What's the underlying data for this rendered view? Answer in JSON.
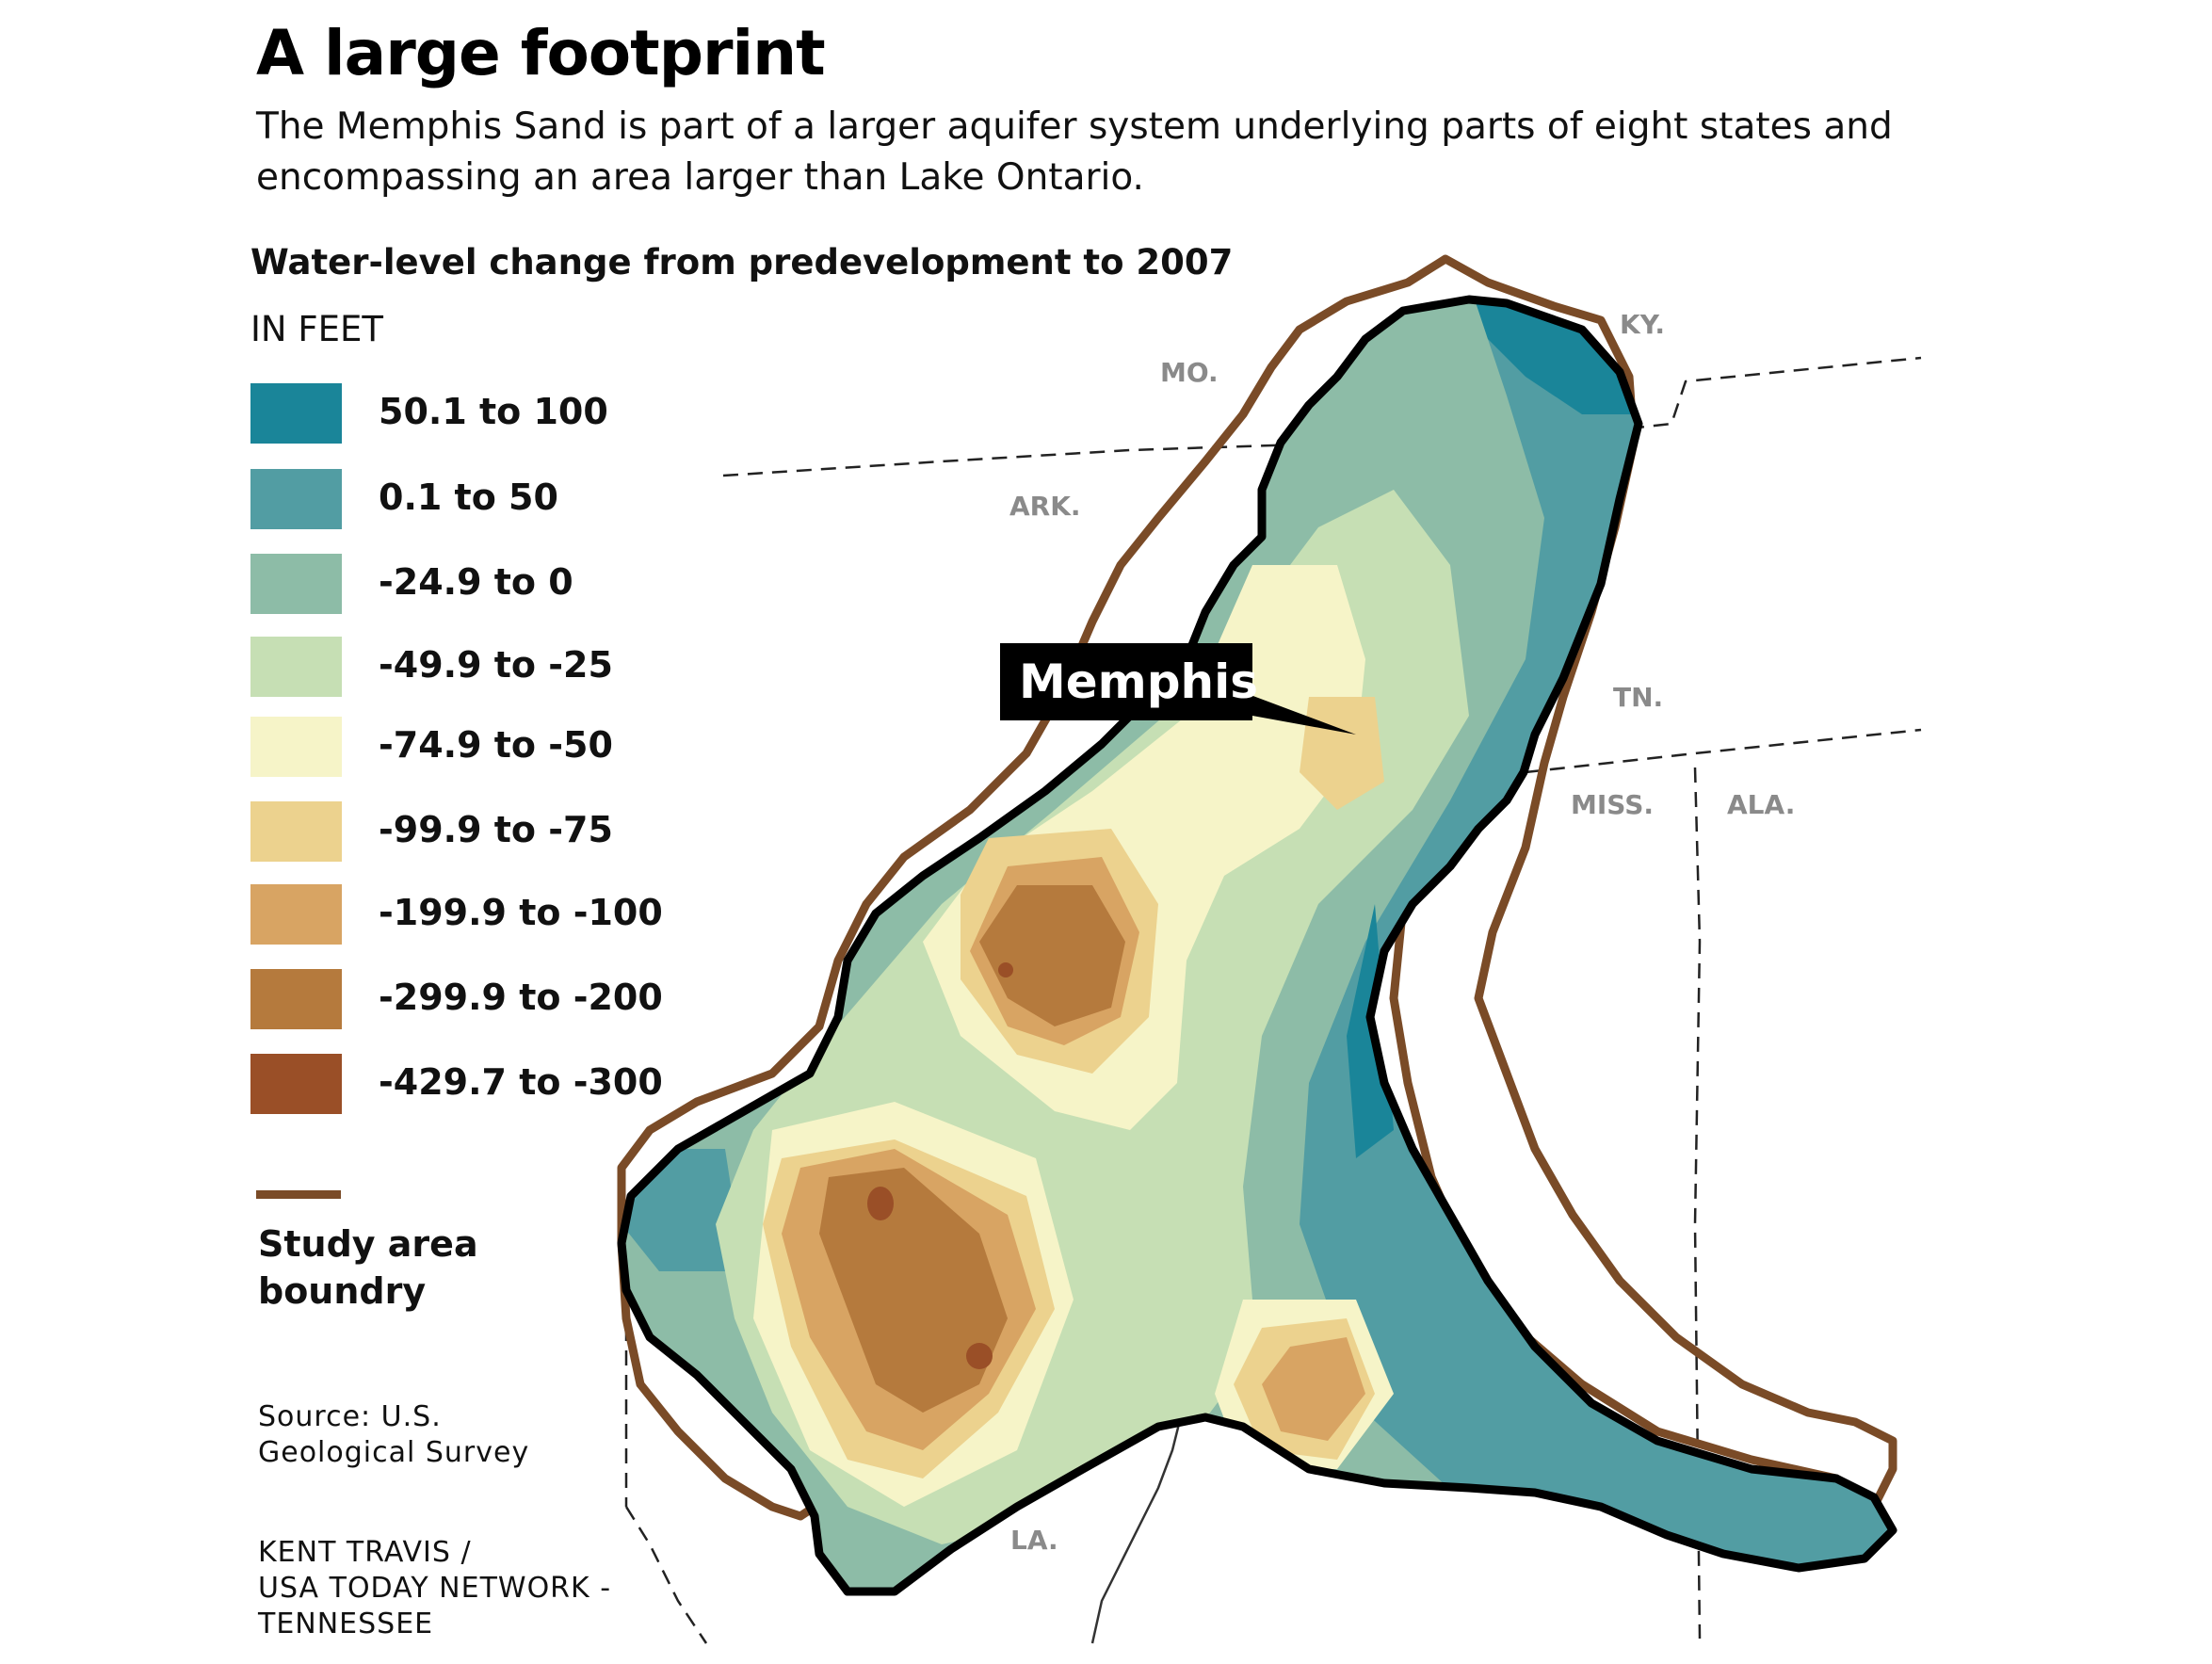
{
  "header": {
    "title": "A large footprint",
    "subtitle": "The Memphis Sand is part of a larger aquifer system underlying parts of eight states and encompassing an area larger than Lake Ontario."
  },
  "legend": {
    "title": "Water-level change from predevelopment to 2007",
    "units": "IN FEET",
    "items": [
      {
        "label": "50.1 to 100",
        "color": "#1a8599"
      },
      {
        "label": "0.1 to 50",
        "color": "#529da3"
      },
      {
        "label": "-24.9 to 0",
        "color": "#8dbca7"
      },
      {
        "label": "-49.9 to -25",
        "color": "#c6dfb4"
      },
      {
        "label": "-74.9 to -50",
        "color": "#f6f4c8"
      },
      {
        "label": "-99.9 to -75",
        "color": "#ecd28e"
      },
      {
        "label": "-199.9 to -100",
        "color": "#d8a463"
      },
      {
        "label": "-299.9 to -200",
        "color": "#b57a3d"
      },
      {
        "label": "-429.7 to -300",
        "color": "#9a4f27"
      }
    ],
    "boundary": {
      "label": "Study area boundry",
      "color": "#7a4b27"
    }
  },
  "map": {
    "states": [
      "MO.",
      "KY.",
      "ARK.",
      "TN.",
      "MISS.",
      "ALA.",
      "LA."
    ],
    "callout": "Memphis"
  },
  "source": "Source: U.S.\nGeological Survey",
  "credit": "KENT TRAVIS /\nUSA TODAY NETWORK -\nTENNESSEE"
}
